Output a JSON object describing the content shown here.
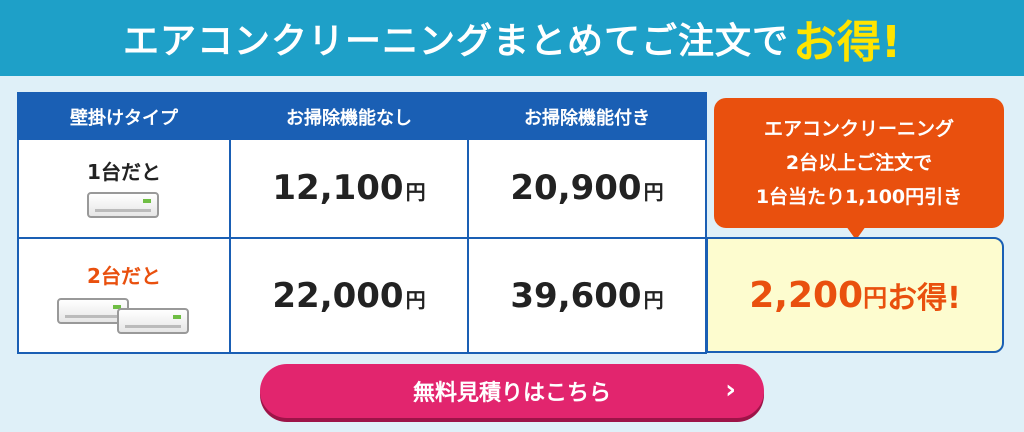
{
  "banner": {
    "title": "エアコンクリーニングまとめてご注文で",
    "accent": "お得!"
  },
  "table": {
    "headers": [
      "壁掛けタイプ",
      "お掃除機能なし",
      "お掃除機能付き"
    ],
    "rows": [
      {
        "label": "1台だと",
        "label_color": "#222222",
        "price_plain": "12,100",
        "price_auto": "20,900"
      },
      {
        "label": "2台だと",
        "label_color": "#e9500e",
        "price_plain": "22,000",
        "price_auto": "39,600"
      }
    ],
    "yen": "円"
  },
  "promo": {
    "line1": "エアコンクリーニング",
    "line2": "2台以上ご注文で",
    "line3": "1台当たり1,100円引き",
    "saving_amount": "2,200",
    "saving_unit": "円",
    "saving_suffix": "お得!"
  },
  "cta": {
    "label": "無料見積りはこちら",
    "arrow": "›"
  },
  "colors": {
    "banner": "#1ea0c8",
    "table_blue": "#1a5fb4",
    "orange": "#e9500e",
    "cta_pink": "#e2256e",
    "accent_yellow": "#ffe400"
  }
}
